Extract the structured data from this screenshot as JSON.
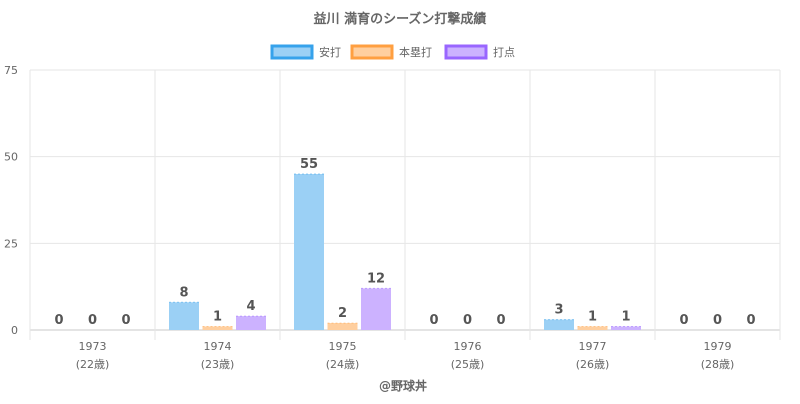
{
  "chart_data": {
    "type": "bar",
    "title": "益川 満育のシーズン打撃成績",
    "categories": [
      [
        "1973",
        "(22歳)"
      ],
      [
        "1974",
        "(23歳)"
      ],
      [
        "1975",
        "(24歳)"
      ],
      [
        "1976",
        "(25歳)"
      ],
      [
        "1977",
        "(26歳)"
      ],
      [
        "1979",
        "(28歳)"
      ]
    ],
    "series": [
      {
        "name": "安打",
        "values": [
          0,
          8,
          55,
          0,
          3,
          0
        ],
        "fill": "#9bd0f5",
        "stroke": "#36a2eb"
      },
      {
        "name": "本塁打",
        "values": [
          0,
          1,
          2,
          0,
          1,
          0
        ],
        "fill": "#ffcf9f",
        "stroke": "#ff9f40"
      },
      {
        "name": "打点",
        "values": [
          0,
          4,
          12,
          0,
          1,
          0
        ],
        "fill": "#ccb2ff",
        "stroke": "#9966ff"
      }
    ],
    "y_ticks": [
      0,
      25,
      50,
      75
    ],
    "ylim": [
      0,
      75
    ],
    "y_display_cap": 45,
    "legend_position": "top",
    "grid": true,
    "credit": "@野球丼"
  }
}
